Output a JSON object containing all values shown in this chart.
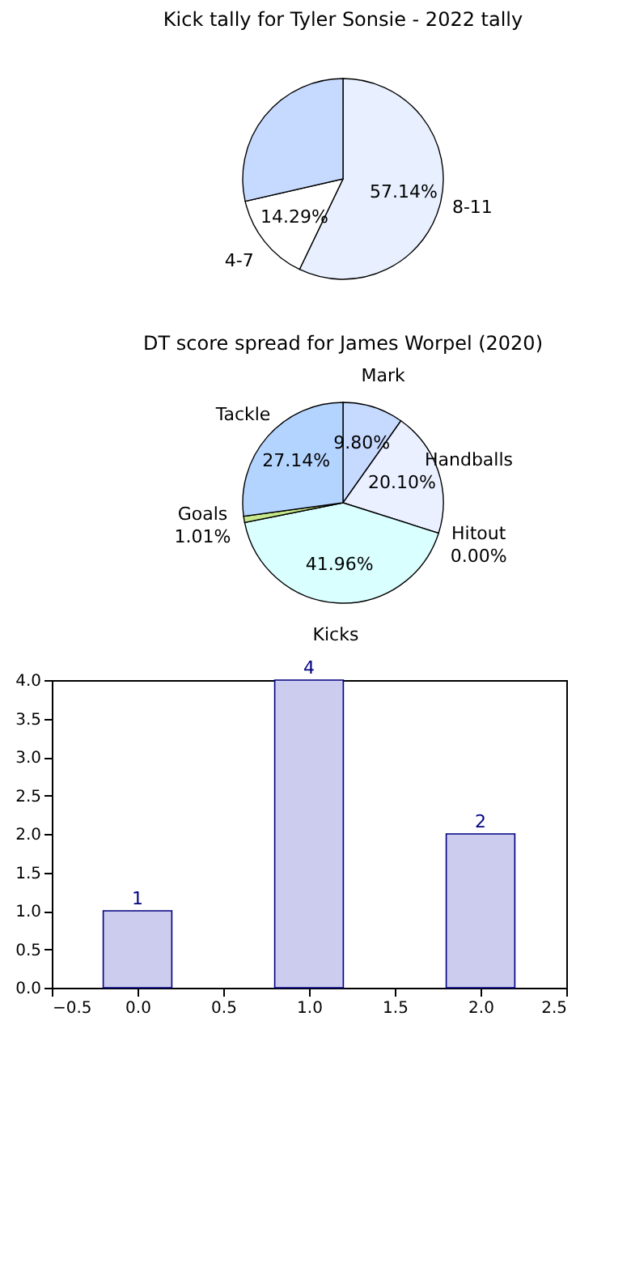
{
  "chart_data": [
    {
      "type": "pie",
      "title": "Kick tally for Tyler Sonsie - 2022 tally",
      "categories": [
        "8-11",
        "4-7",
        null
      ],
      "values": [
        57.14,
        14.29,
        28.57
      ],
      "colors": [
        "#e8f0ff",
        "#ffffff",
        "#c6d9ff"
      ],
      "value_labels": [
        "57.14%",
        "14.29%",
        null
      ]
    },
    {
      "type": "pie",
      "title": "DT score spread for James Worpel (2020)",
      "categories": [
        "Mark",
        "Handballs",
        "Hitout",
        "Kicks",
        "Goals",
        "Tackle"
      ],
      "values": [
        9.8,
        20.1,
        0.0,
        41.96,
        1.01,
        27.14
      ],
      "colors": [
        "#c6d9ff",
        "#eaf0ff",
        "#ffffff",
        "#d9ffff",
        "#c5e88a",
        "#b3d4ff"
      ],
      "value_labels": [
        "9.80%",
        "20.10%",
        "0.00%",
        "41.96%",
        "1.01%",
        "27.14%"
      ]
    },
    {
      "type": "bar",
      "x": [
        0,
        1,
        2
      ],
      "values": [
        1,
        4,
        2
      ],
      "color": "#ccccee",
      "data_labels": true,
      "xlim": [
        -0.5,
        2.5
      ],
      "xticks": [
        -0.5,
        {
          "value": 0,
          "label": "0.0"
        },
        0.5,
        {
          "value": 1,
          "label": "1.0"
        },
        1.5,
        {
          "value": 2,
          "label": "2.0"
        },
        2.5
      ],
      "ylim": [
        0,
        4
      ],
      "yticks": [
        {
          "value": 0,
          "label": "0.0"
        },
        0.5,
        {
          "value": 1,
          "label": "1.0"
        },
        1.5,
        {
          "value": 2,
          "label": "2.0"
        },
        2.5,
        {
          "value": 3,
          "label": "3.0"
        },
        3.5,
        {
          "value": 4,
          "label": "4.0"
        }
      ]
    }
  ]
}
